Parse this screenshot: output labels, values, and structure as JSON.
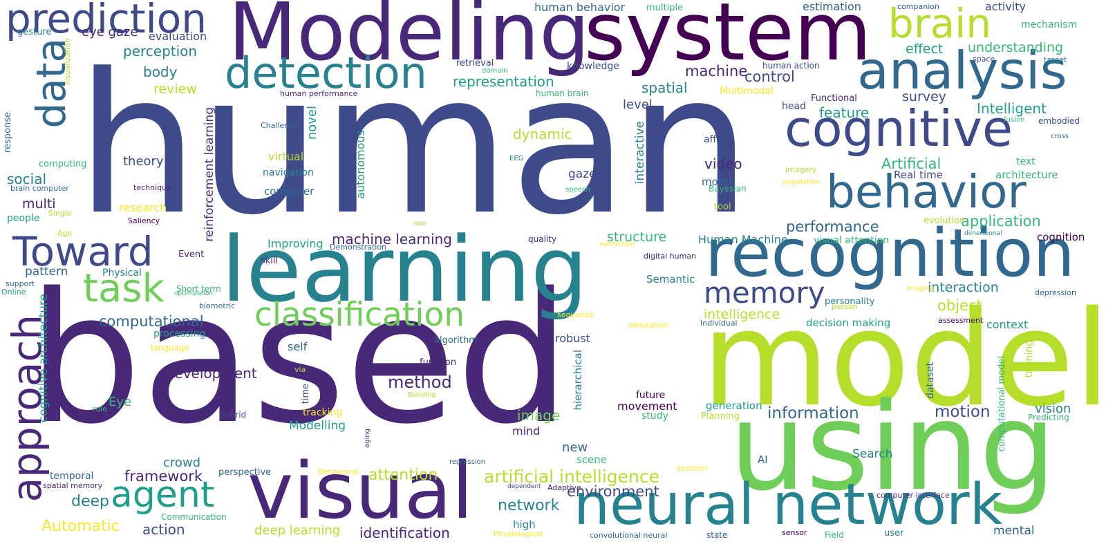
{
  "palette": {
    "background": "#ffffff",
    "colors": [
      "#440154",
      "#482878",
      "#3e4a89",
      "#31688e",
      "#26828e",
      "#1f9e89",
      "#35b779",
      "#6ece58",
      "#b5de2b",
      "#fde725"
    ]
  },
  "words": [
    {
      "text": "human",
      "color": "#3e4a89"
    },
    {
      "text": "based",
      "color": "#482878"
    },
    {
      "text": "model",
      "color": "#b5de2b"
    },
    {
      "text": "using",
      "color": "#6ece58"
    },
    {
      "text": "learning",
      "color": "#26828e"
    },
    {
      "text": "Modeling",
      "color": "#482878"
    },
    {
      "text": "system",
      "color": "#440154"
    },
    {
      "text": "recognition",
      "color": "#31688e"
    },
    {
      "text": "visual",
      "color": "#482878"
    },
    {
      "text": "neural network",
      "color": "#26828e"
    },
    {
      "text": "analysis",
      "color": "#31688e"
    },
    {
      "text": "cognitive",
      "color": "#3e4a89"
    },
    {
      "text": "behavior",
      "color": "#31688e"
    },
    {
      "text": "detection",
      "color": "#26828e"
    },
    {
      "text": "prediction",
      "color": "#3e4a89"
    },
    {
      "text": "brain",
      "color": "#b5de2b"
    },
    {
      "text": "data",
      "color": "#31688e"
    },
    {
      "text": "approach",
      "color": "#482878"
    },
    {
      "text": "Toward",
      "color": "#3e4a89"
    },
    {
      "text": "task",
      "color": "#6ece58"
    },
    {
      "text": "agent",
      "color": "#1f9e89"
    },
    {
      "text": "classification",
      "color": "#6ece58"
    },
    {
      "text": "memory",
      "color": "#3e4a89"
    },
    {
      "text": "cognitive architecture",
      "color": "#1f9e89"
    },
    {
      "text": "reinforcement learning",
      "color": "#482878"
    },
    {
      "text": "artificial intelligence",
      "color": "#b5de2b"
    },
    {
      "text": "machine learning",
      "color": "#482878"
    },
    {
      "text": "computational",
      "color": "#31688e"
    },
    {
      "text": "Development",
      "color": "#482878"
    },
    {
      "text": "method",
      "color": "#482878"
    },
    {
      "text": "information",
      "color": "#31688e"
    },
    {
      "text": "motion",
      "color": "#3e4a89"
    },
    {
      "text": "environment",
      "color": "#3e4a89"
    },
    {
      "text": "framework",
      "color": "#482878"
    },
    {
      "text": "attention",
      "color": "#b5de2b"
    },
    {
      "text": "network",
      "color": "#26828e"
    },
    {
      "text": "identification",
      "color": "#482878"
    },
    {
      "text": "Automatic",
      "color": "#fde725"
    },
    {
      "text": "action",
      "color": "#3e4a89"
    },
    {
      "text": "deep",
      "color": "#26828e"
    },
    {
      "text": "deep learning",
      "color": "#b5de2b"
    },
    {
      "text": "representation",
      "color": "#1f9e89"
    },
    {
      "text": "perception",
      "color": "#26828e"
    },
    {
      "text": "eye gaze",
      "color": "#482878"
    },
    {
      "text": "body",
      "color": "#26828e"
    },
    {
      "text": "review",
      "color": "#b5de2b"
    },
    {
      "text": "evaluation",
      "color": "#3e4a89"
    },
    {
      "text": "gesture",
      "color": "#26828e"
    },
    {
      "text": "human behavior",
      "color": "#31688e"
    },
    {
      "text": "multiple",
      "color": "#35b779"
    },
    {
      "text": "estimation",
      "color": "#31688e"
    },
    {
      "text": "activity",
      "color": "#3e4a89"
    },
    {
      "text": "companion",
      "color": "#31688e"
    },
    {
      "text": "mechanism",
      "color": "#35b779"
    },
    {
      "text": "understanding",
      "color": "#35b779"
    },
    {
      "text": "effect",
      "color": "#1f9e89"
    },
    {
      "text": "machine",
      "color": "#482878"
    },
    {
      "text": "control",
      "color": "#3e4a89"
    },
    {
      "text": "spatial",
      "color": "#26828e"
    },
    {
      "text": "level",
      "color": "#3e4a89"
    },
    {
      "text": "survey",
      "color": "#3e4a89"
    },
    {
      "text": "feature",
      "color": "#1f9e89"
    },
    {
      "text": "Intelligent",
      "color": "#1f9e89"
    },
    {
      "text": "embodied",
      "color": "#3e4a89"
    },
    {
      "text": "fusion",
      "color": "#35b779"
    },
    {
      "text": "cross",
      "color": "#31688e"
    },
    {
      "text": "text",
      "color": "#35b779"
    },
    {
      "text": "architecture",
      "color": "#35b779"
    },
    {
      "text": "Artificial",
      "color": "#35b779"
    },
    {
      "text": "Real time",
      "color": "#3e4a89"
    },
    {
      "text": "application",
      "color": "#35b779"
    },
    {
      "text": "evolution",
      "color": "#b5de2b"
    },
    {
      "text": "cognition",
      "color": "#440154"
    },
    {
      "text": "dimensional",
      "color": "#26828e"
    },
    {
      "text": "dynamic",
      "color": "#b5de2b"
    },
    {
      "text": "theory",
      "color": "#3e4a89"
    },
    {
      "text": "social",
      "color": "#26828e"
    },
    {
      "text": "multi",
      "color": "#482878"
    },
    {
      "text": "video",
      "color": "#482878"
    },
    {
      "text": "gaze",
      "color": "#3e4a89"
    },
    {
      "text": "motor",
      "color": "#31688e"
    },
    {
      "text": "Bayesian",
      "color": "#35b779"
    },
    {
      "text": "tool",
      "color": "#b5de2b"
    },
    {
      "text": "interactive",
      "color": "#26828e"
    },
    {
      "text": "affect",
      "color": "#3e4a89"
    },
    {
      "text": "imagery",
      "color": "#b5de2b"
    },
    {
      "text": "population",
      "color": "#fde725"
    },
    {
      "text": "novel",
      "color": "#1f9e89"
    },
    {
      "text": "autonomous",
      "color": "#1f9e89"
    },
    {
      "text": "virtual",
      "color": "#b5de2b"
    },
    {
      "text": "navigation",
      "color": "#26828e"
    },
    {
      "text": "computer",
      "color": "#31688e"
    },
    {
      "text": "retrieval",
      "color": "#3e4a89"
    },
    {
      "text": "domain",
      "color": "#35b779"
    },
    {
      "text": "knowledge",
      "color": "#3e4a89"
    },
    {
      "text": "human action",
      "color": "#3e4a89"
    },
    {
      "text": "space",
      "color": "#3e4a89"
    },
    {
      "text": "target",
      "color": "#26828e"
    },
    {
      "text": "human brain",
      "color": "#35b779"
    },
    {
      "text": "human performance",
      "color": "#482878"
    },
    {
      "text": "Multimodal",
      "color": "#fde725"
    },
    {
      "text": "Functional",
      "color": "#482878"
    },
    {
      "text": "head",
      "color": "#3e4a89"
    },
    {
      "text": "Challenge",
      "color": "#31688e"
    },
    {
      "text": "EEG",
      "color": "#26828e"
    },
    {
      "text": "speech",
      "color": "#35b779"
    },
    {
      "text": "technique",
      "color": "#482878"
    },
    {
      "text": "visualization",
      "color": "#b5de2b"
    },
    {
      "text": "response",
      "color": "#31688e"
    },
    {
      "text": "computing",
      "color": "#35b779"
    },
    {
      "text": "brain computer",
      "color": "#31688e"
    },
    {
      "text": "people",
      "color": "#1f9e89"
    },
    {
      "text": "Single",
      "color": "#b5de2b"
    },
    {
      "text": "Age",
      "color": "#b5de2b"
    },
    {
      "text": "research",
      "color": "#fde725"
    },
    {
      "text": "Saliency",
      "color": "#440154"
    },
    {
      "text": "pattern",
      "color": "#31688e"
    },
    {
      "text": "Physical",
      "color": "#26828e"
    },
    {
      "text": "Event",
      "color": "#482878"
    },
    {
      "text": "support",
      "color": "#31688e"
    },
    {
      "text": "Online",
      "color": "#1f9e89"
    },
    {
      "text": "Improving",
      "color": "#1f9e89"
    },
    {
      "text": "Demonstration",
      "color": "#31688e"
    },
    {
      "text": "skill",
      "color": "#482878"
    },
    {
      "text": "Short term",
      "color": "#35b779"
    },
    {
      "text": "optimization",
      "color": "#35b779"
    },
    {
      "text": "biometric",
      "color": "#31688e"
    },
    {
      "text": "non",
      "color": "#b5de2b"
    },
    {
      "text": "quality",
      "color": "#482878"
    },
    {
      "text": "structure",
      "color": "#35b779"
    },
    {
      "text": "Human Machine",
      "color": "#26828e"
    },
    {
      "text": "extraction",
      "color": "#fde725"
    },
    {
      "text": "digital human",
      "color": "#482878"
    },
    {
      "text": "performance",
      "color": "#31688e"
    },
    {
      "text": "visual attention",
      "color": "#35b779"
    },
    {
      "text": "Semantic",
      "color": "#26828e"
    },
    {
      "text": "interaction",
      "color": "#26828e"
    },
    {
      "text": "personality",
      "color": "#26828e"
    },
    {
      "text": "person",
      "color": "#b5de2b"
    },
    {
      "text": "imaging",
      "color": "#fde725"
    },
    {
      "text": "depression",
      "color": "#31688e"
    },
    {
      "text": "intelligence",
      "color": "#b5de2b"
    },
    {
      "text": "object",
      "color": "#b5de2b"
    },
    {
      "text": "decision making",
      "color": "#1f9e89"
    },
    {
      "text": "context",
      "color": "#1f9e89"
    },
    {
      "text": "assessment",
      "color": "#440154"
    },
    {
      "text": "Individual",
      "color": "#31688e"
    },
    {
      "text": "simulation",
      "color": "#fde725"
    },
    {
      "text": "sequence",
      "color": "#fde725"
    },
    {
      "text": "processing",
      "color": "#1f9e89"
    },
    {
      "text": "language",
      "color": "#fde725"
    },
    {
      "text": "algorithm",
      "color": "#31688e"
    },
    {
      "text": "robust",
      "color": "#3e4a89"
    },
    {
      "text": "self",
      "color": "#31688e"
    },
    {
      "text": "function",
      "color": "#482878"
    },
    {
      "text": "via",
      "color": "#b5de2b"
    },
    {
      "text": "time",
      "color": "#3e4a89"
    },
    {
      "text": "hierarchical",
      "color": "#26828e"
    },
    {
      "text": "training",
      "color": "#b5de2b"
    },
    {
      "text": "dataset",
      "color": "#31688e"
    },
    {
      "text": "computational model",
      "color": "#35b779"
    },
    {
      "text": "vision",
      "color": "#26828e"
    },
    {
      "text": "Predicting",
      "color": "#35b779"
    },
    {
      "text": "generation",
      "color": "#1f9e89"
    },
    {
      "text": "Planning",
      "color": "#b5de2b"
    },
    {
      "text": "future",
      "color": "#440154"
    },
    {
      "text": "study",
      "color": "#35b779"
    },
    {
      "text": "movement",
      "color": "#440154"
    },
    {
      "text": "image",
      "color": "#6ece58"
    },
    {
      "text": "mind",
      "color": "#482878"
    },
    {
      "text": "Eye",
      "color": "#35b779"
    },
    {
      "text": "role",
      "color": "#35b779"
    },
    {
      "text": "tracking",
      "color": "#fde725"
    },
    {
      "text": "Building",
      "color": "#b5de2b"
    },
    {
      "text": "hybrid",
      "color": "#3e4a89"
    },
    {
      "text": "aging",
      "color": "#3e4a89"
    },
    {
      "text": "Modelling",
      "color": "#1f9e89"
    },
    {
      "text": "new",
      "color": "#31688e"
    },
    {
      "text": "scene",
      "color": "#35b779"
    },
    {
      "text": "crowd",
      "color": "#26828e"
    },
    {
      "text": "perspective",
      "color": "#31688e"
    },
    {
      "text": "temporal",
      "color": "#31688e"
    },
    {
      "text": "spatial memory",
      "color": "#482878"
    },
    {
      "text": "Behavioral",
      "color": "#fde725"
    },
    {
      "text": "regression",
      "color": "#31688e"
    },
    {
      "text": "dependent",
      "color": "#3e4a89"
    },
    {
      "text": "Adaptive",
      "color": "#482878"
    },
    {
      "text": "Communication",
      "color": "#35b779"
    },
    {
      "text": "high",
      "color": "#26828e"
    },
    {
      "text": "Physiological",
      "color": "#fde725"
    },
    {
      "text": "convolutional neural",
      "color": "#31688e"
    },
    {
      "text": "state",
      "color": "#31688e"
    },
    {
      "text": "sensor",
      "color": "#440154"
    },
    {
      "text": "Field",
      "color": "#35b779"
    },
    {
      "text": "user",
      "color": "#26828e"
    },
    {
      "text": "mental",
      "color": "#31688e"
    },
    {
      "text": "computer interface",
      "color": "#482878"
    },
    {
      "text": "Search",
      "color": "#26828e"
    },
    {
      "text": "AI",
      "color": "#31688e"
    },
    {
      "text": "decision",
      "color": "#fde725"
    }
  ]
}
